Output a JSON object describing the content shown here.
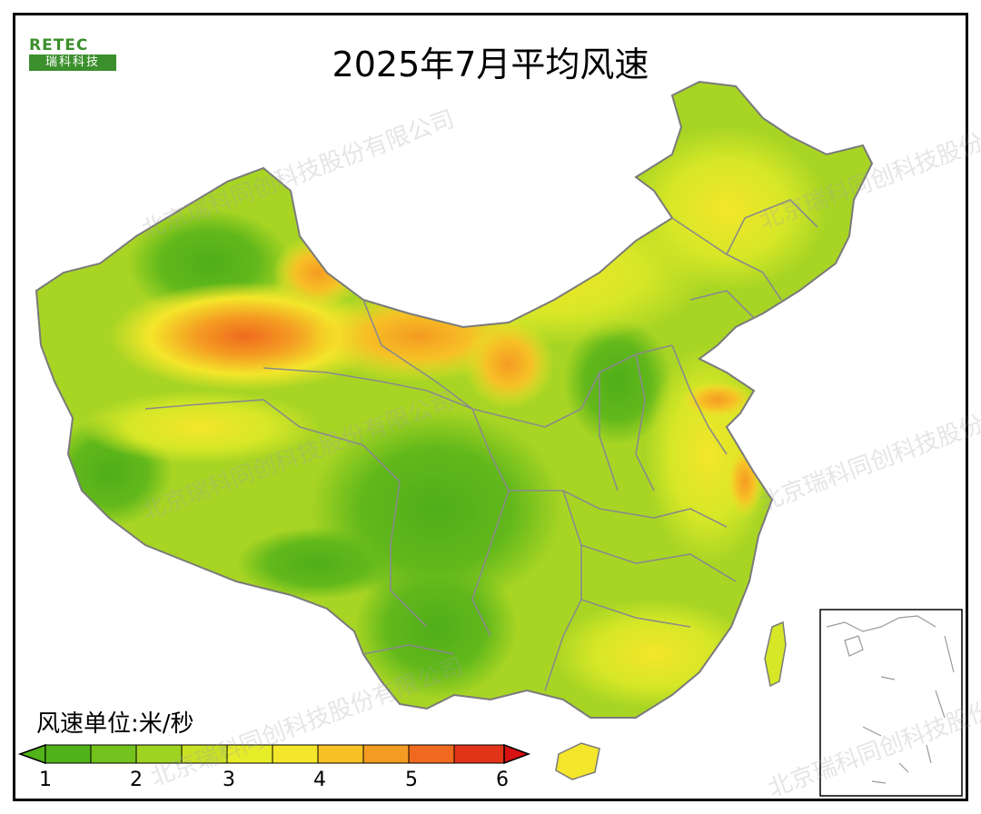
{
  "title": "2025年7月平均风速",
  "logo": {
    "text_top": "RETEC",
    "text_bottom": "瑞科科技"
  },
  "watermark_text": "北京瑞科同创科技股份有限公司",
  "colorbar": {
    "unit_label": "风速单位:米/秒",
    "tick_labels": [
      "1",
      "2",
      "3",
      "4",
      "5",
      "6"
    ],
    "colors": [
      "#52b219",
      "#74c21d",
      "#9fd321",
      "#d6e727",
      "#f4e62a",
      "#f7c126",
      "#f49b22",
      "#ef6a1e",
      "#e23418",
      "#d61212"
    ]
  },
  "colors": {
    "low": "#4fae1a",
    "mid": "#a8d524",
    "high": "#f1e02a",
    "peak": "#f07d20",
    "border": "#7a7a7a"
  }
}
